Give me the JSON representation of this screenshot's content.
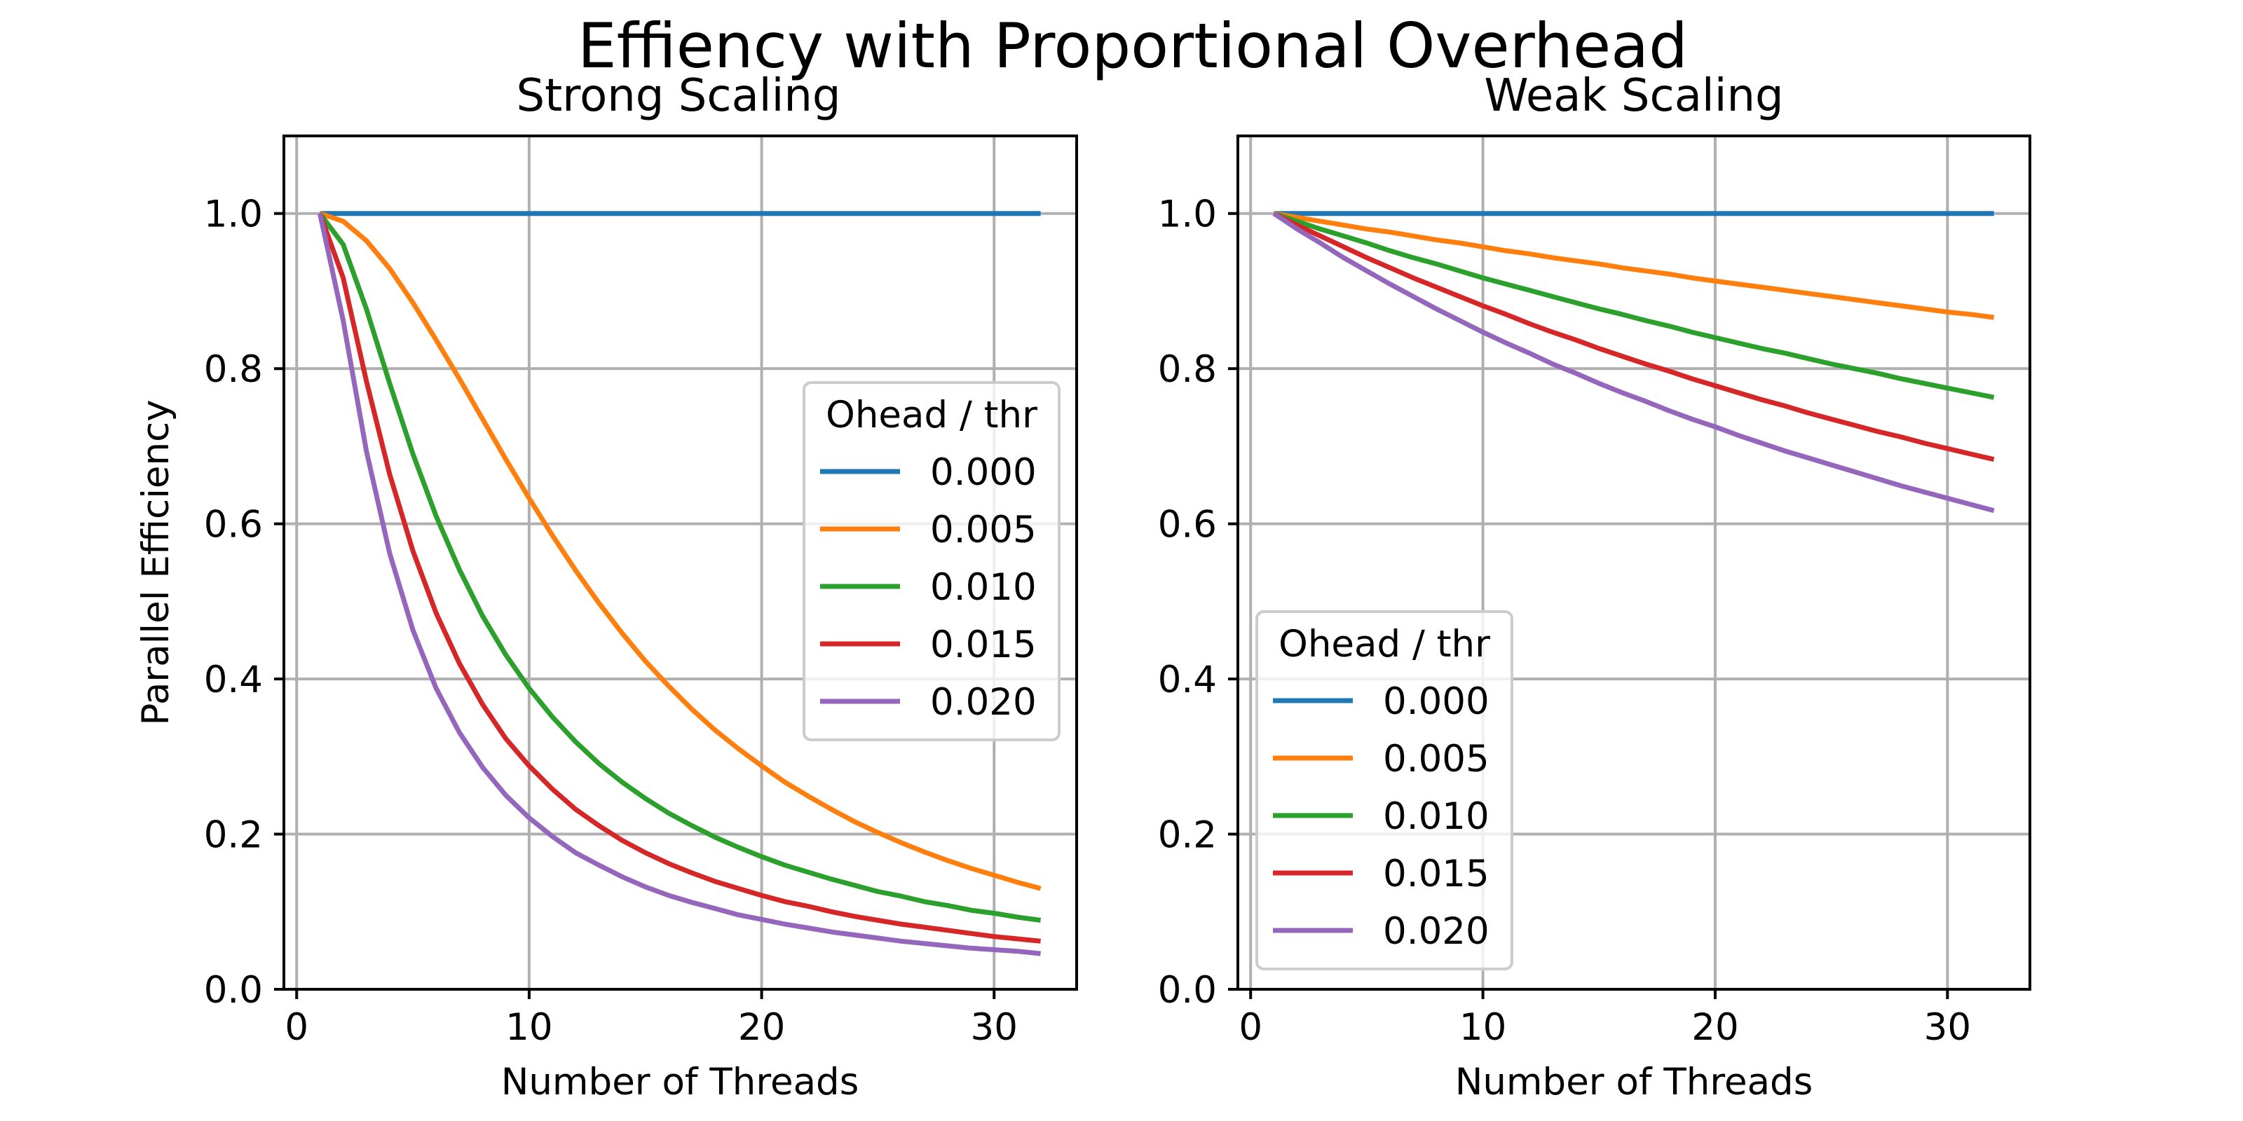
{
  "figure": {
    "suptitle": "Effiency with Proportional Overhead"
  },
  "chart_data": [
    {
      "type": "line",
      "title": "Strong Scaling",
      "xlabel": "Number of Threads",
      "ylabel": "Parallel Efficiency",
      "xlim": [
        -0.55,
        33.55
      ],
      "ylim": [
        0.0,
        1.1
      ],
      "xticks": [
        0,
        10,
        20,
        30
      ],
      "xtick_labels": [
        "0",
        "10",
        "20",
        "30"
      ],
      "yticks": [
        0.0,
        0.2,
        0.4,
        0.6,
        0.8,
        1.0
      ],
      "ytick_labels": [
        "0.0",
        "0.2",
        "0.4",
        "0.6",
        "0.8",
        "1.0"
      ],
      "grid": true,
      "legend_title": "Ohead / thr",
      "legend_placement": "center-right",
      "x": [
        1,
        2,
        3,
        4,
        5,
        6,
        7,
        8,
        9,
        10,
        11,
        12,
        13,
        14,
        15,
        16,
        17,
        18,
        19,
        20,
        21,
        22,
        23,
        24,
        25,
        26,
        27,
        28,
        29,
        30,
        31,
        32
      ],
      "series": [
        {
          "name": "0.000",
          "color": "#1f77b4",
          "values": [
            1.0,
            1.0,
            1.0,
            1.0,
            1.0,
            1.0,
            1.0,
            1.0,
            1.0,
            1.0,
            1.0,
            1.0,
            1.0,
            1.0,
            1.0,
            1.0,
            1.0,
            1.0,
            1.0,
            1.0,
            1.0,
            1.0,
            1.0,
            1.0,
            1.0,
            1.0,
            1.0,
            1.0,
            1.0,
            1.0,
            1.0,
            1.0
          ]
        },
        {
          "name": "0.005",
          "color": "#ff7f0e",
          "values": [
            1.0,
            0.99,
            0.965,
            0.929,
            0.885,
            0.837,
            0.787,
            0.735,
            0.683,
            0.633,
            0.585,
            0.54,
            0.498,
            0.459,
            0.423,
            0.391,
            0.361,
            0.334,
            0.31,
            0.288,
            0.267,
            0.249,
            0.232,
            0.216,
            0.202,
            0.189,
            0.177,
            0.166,
            0.156,
            0.147,
            0.138,
            0.13
          ]
        },
        {
          "name": "0.010",
          "color": "#2ca02c",
          "values": [
            1.0,
            0.96,
            0.877,
            0.781,
            0.69,
            0.61,
            0.541,
            0.481,
            0.431,
            0.388,
            0.351,
            0.319,
            0.291,
            0.267,
            0.246,
            0.227,
            0.211,
            0.196,
            0.183,
            0.171,
            0.16,
            0.151,
            0.142,
            0.134,
            0.126,
            0.12,
            0.113,
            0.108,
            0.102,
            0.098,
            0.093,
            0.089
          ]
        },
        {
          "name": "0.015",
          "color": "#d62728",
          "values": [
            1.0,
            0.917,
            0.784,
            0.664,
            0.565,
            0.485,
            0.42,
            0.367,
            0.323,
            0.288,
            0.258,
            0.232,
            0.211,
            0.192,
            0.176,
            0.162,
            0.15,
            0.139,
            0.13,
            0.121,
            0.113,
            0.107,
            0.1,
            0.094,
            0.089,
            0.084,
            0.08,
            0.076,
            0.072,
            0.068,
            0.065,
            0.062
          ]
        },
        {
          "name": "0.020",
          "color": "#9467bd",
          "values": [
            1.0,
            0.862,
            0.694,
            0.562,
            0.463,
            0.388,
            0.331,
            0.286,
            0.25,
            0.221,
            0.197,
            0.176,
            0.16,
            0.145,
            0.132,
            0.121,
            0.112,
            0.104,
            0.096,
            0.09,
            0.084,
            0.079,
            0.074,
            0.07,
            0.066,
            0.062,
            0.059,
            0.056,
            0.053,
            0.051,
            0.049,
            0.046
          ]
        }
      ]
    },
    {
      "type": "line",
      "title": "Weak Scaling",
      "xlabel": "Number of Threads",
      "ylabel": "",
      "xlim": [
        -0.55,
        33.55
      ],
      "ylim": [
        0.0,
        1.1
      ],
      "xticks": [
        0,
        10,
        20,
        30
      ],
      "xtick_labels": [
        "0",
        "10",
        "20",
        "30"
      ],
      "yticks": [
        0.0,
        0.2,
        0.4,
        0.6,
        0.8,
        1.0
      ],
      "ytick_labels": [
        "0.0",
        "0.2",
        "0.4",
        "0.6",
        "0.8",
        "1.0"
      ],
      "grid": true,
      "legend_title": "Ohead / thr",
      "legend_placement": "lower-left",
      "x": [
        1,
        2,
        3,
        4,
        5,
        6,
        7,
        8,
        9,
        10,
        11,
        12,
        13,
        14,
        15,
        16,
        17,
        18,
        19,
        20,
        21,
        22,
        23,
        24,
        25,
        26,
        27,
        28,
        29,
        30,
        31,
        32
      ],
      "series": [
        {
          "name": "0.000",
          "color": "#1f77b4",
          "values": [
            1.0,
            1.0,
            1.0,
            1.0,
            1.0,
            1.0,
            1.0,
            1.0,
            1.0,
            1.0,
            1.0,
            1.0,
            1.0,
            1.0,
            1.0,
            1.0,
            1.0,
            1.0,
            1.0,
            1.0,
            1.0,
            1.0,
            1.0,
            1.0,
            1.0,
            1.0,
            1.0,
            1.0,
            1.0,
            1.0,
            1.0,
            1.0
          ]
        },
        {
          "name": "0.005",
          "color": "#ff7f0e",
          "values": [
            1.0,
            0.995,
            0.99,
            0.985,
            0.98,
            0.976,
            0.971,
            0.966,
            0.962,
            0.957,
            0.952,
            0.948,
            0.943,
            0.939,
            0.935,
            0.93,
            0.926,
            0.922,
            0.917,
            0.913,
            0.909,
            0.905,
            0.901,
            0.897,
            0.893,
            0.889,
            0.885,
            0.881,
            0.877,
            0.873,
            0.87,
            0.866
          ]
        },
        {
          "name": "0.010",
          "color": "#2ca02c",
          "values": [
            1.0,
            0.99,
            0.98,
            0.971,
            0.962,
            0.952,
            0.943,
            0.935,
            0.926,
            0.917,
            0.909,
            0.901,
            0.893,
            0.885,
            0.877,
            0.87,
            0.862,
            0.855,
            0.847,
            0.84,
            0.833,
            0.826,
            0.82,
            0.813,
            0.806,
            0.8,
            0.794,
            0.787,
            0.781,
            0.775,
            0.769,
            0.763
          ]
        },
        {
          "name": "0.015",
          "color": "#d62728",
          "values": [
            1.0,
            0.985,
            0.971,
            0.957,
            0.943,
            0.93,
            0.917,
            0.905,
            0.893,
            0.881,
            0.87,
            0.858,
            0.847,
            0.837,
            0.826,
            0.816,
            0.806,
            0.797,
            0.787,
            0.778,
            0.769,
            0.76,
            0.752,
            0.743,
            0.735,
            0.727,
            0.719,
            0.712,
            0.704,
            0.697,
            0.69,
            0.683
          ]
        },
        {
          "name": "0.020",
          "color": "#9467bd",
          "values": [
            1.0,
            0.98,
            0.962,
            0.943,
            0.926,
            0.909,
            0.893,
            0.877,
            0.862,
            0.847,
            0.833,
            0.82,
            0.806,
            0.794,
            0.781,
            0.769,
            0.758,
            0.746,
            0.735,
            0.725,
            0.714,
            0.704,
            0.694,
            0.685,
            0.676,
            0.667,
            0.658,
            0.649,
            0.641,
            0.633,
            0.625,
            0.617
          ]
        }
      ]
    }
  ]
}
